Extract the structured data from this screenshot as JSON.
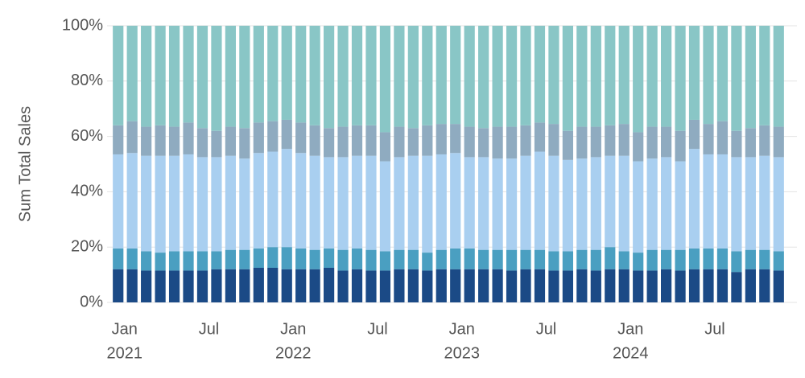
{
  "chart_data": {
    "type": "stacked-bar-100",
    "y_label": "Sum Total Sales",
    "categories": [
      [
        "Jan",
        "2021"
      ],
      null,
      null,
      null,
      null,
      null,
      [
        "Jul"
      ],
      null,
      null,
      null,
      null,
      null,
      [
        "Jan",
        "2022"
      ],
      null,
      null,
      null,
      null,
      null,
      [
        "Jul"
      ],
      null,
      null,
      null,
      null,
      null,
      [
        "Jan",
        "2023"
      ],
      null,
      null,
      null,
      null,
      null,
      [
        "Jul"
      ],
      null,
      null,
      null,
      null,
      null,
      [
        "Jan",
        "2024"
      ],
      null,
      null,
      null,
      null,
      null,
      [
        "Jul"
      ],
      null,
      null,
      null,
      null,
      null
    ],
    "series": [
      {
        "color": "#1b4a86",
        "values": [
          12,
          12,
          11.5,
          11.5,
          11.5,
          11.5,
          11.5,
          12,
          12,
          12,
          12.5,
          12.5,
          12,
          12,
          12,
          12.5,
          11.5,
          12,
          11.5,
          11.5,
          12,
          12,
          11.5,
          12,
          12,
          12,
          12,
          12,
          11.5,
          12,
          12,
          11.5,
          11.5,
          12,
          11.5,
          12,
          12,
          11.5,
          11.5,
          12,
          11.5,
          12,
          12,
          12,
          11,
          12,
          12,
          11.5
        ]
      },
      {
        "color": "#4a9fc1",
        "values": [
          7.5,
          7.5,
          7,
          6.5,
          7,
          7,
          7,
          6.5,
          7,
          7,
          7,
          7.5,
          8,
          7.5,
          7,
          7,
          7.5,
          7.5,
          7.5,
          7,
          7,
          7,
          6.5,
          7,
          7.5,
          7.5,
          7,
          7,
          7.5,
          7,
          7,
          7,
          7,
          7,
          7.5,
          8,
          6.5,
          6.5,
          7.5,
          7,
          7.5,
          7.5,
          7.5,
          7.5,
          7.5,
          7,
          7,
          7
        ]
      },
      {
        "color": "#a9cff0",
        "values": [
          34,
          34.5,
          34.5,
          35,
          34.5,
          35,
          34,
          34,
          34,
          33,
          34.5,
          34.5,
          35.5,
          34.5,
          34,
          33,
          33.5,
          33.5,
          34,
          32.5,
          33.5,
          34,
          35,
          34.5,
          34.5,
          33,
          33.5,
          33,
          33,
          34,
          35.5,
          34.5,
          33,
          33,
          33.5,
          33,
          34.5,
          33,
          33,
          33.5,
          32,
          36,
          34,
          34,
          34,
          33.5,
          34,
          34
        ]
      },
      {
        "color": "#8fabc0",
        "values": [
          10.5,
          11.5,
          10.5,
          11,
          10.5,
          11.5,
          10.5,
          9.5,
          10.5,
          11,
          11,
          11,
          10.5,
          11,
          11,
          10.5,
          11,
          11,
          11,
          10.5,
          11,
          10,
          11,
          11,
          10.5,
          11,
          10.5,
          11.5,
          11.5,
          11,
          10.5,
          11.5,
          10.5,
          11.5,
          11,
          11,
          11.5,
          10.5,
          11.5,
          11,
          11,
          10.5,
          11,
          12,
          9.5,
          10.5,
          11,
          11
        ]
      },
      {
        "color": "#89c6c6",
        "values": [
          36,
          34.5,
          36.5,
          36,
          36.5,
          35,
          37,
          38,
          36.5,
          37,
          35,
          34.5,
          34,
          35,
          36,
          37,
          36.5,
          36,
          36,
          38.5,
          36.5,
          37,
          36,
          35.5,
          35.5,
          36.5,
          37,
          36.5,
          36.5,
          36,
          35,
          35.5,
          38,
          36.5,
          36.5,
          36,
          35.5,
          38.5,
          36.5,
          36.5,
          38,
          34,
          35.5,
          34.5,
          38,
          37,
          36,
          36.5
        ]
      }
    ],
    "ylim": [
      0,
      100
    ],
    "yticks": [
      {
        "value": 0,
        "label": "0%"
      },
      {
        "value": 20,
        "label": "20%"
      },
      {
        "value": 40,
        "label": "40%"
      },
      {
        "value": 60,
        "label": "60%"
      },
      {
        "value": 80,
        "label": "80%"
      },
      {
        "value": 100,
        "label": "100%"
      }
    ],
    "grid": true
  }
}
